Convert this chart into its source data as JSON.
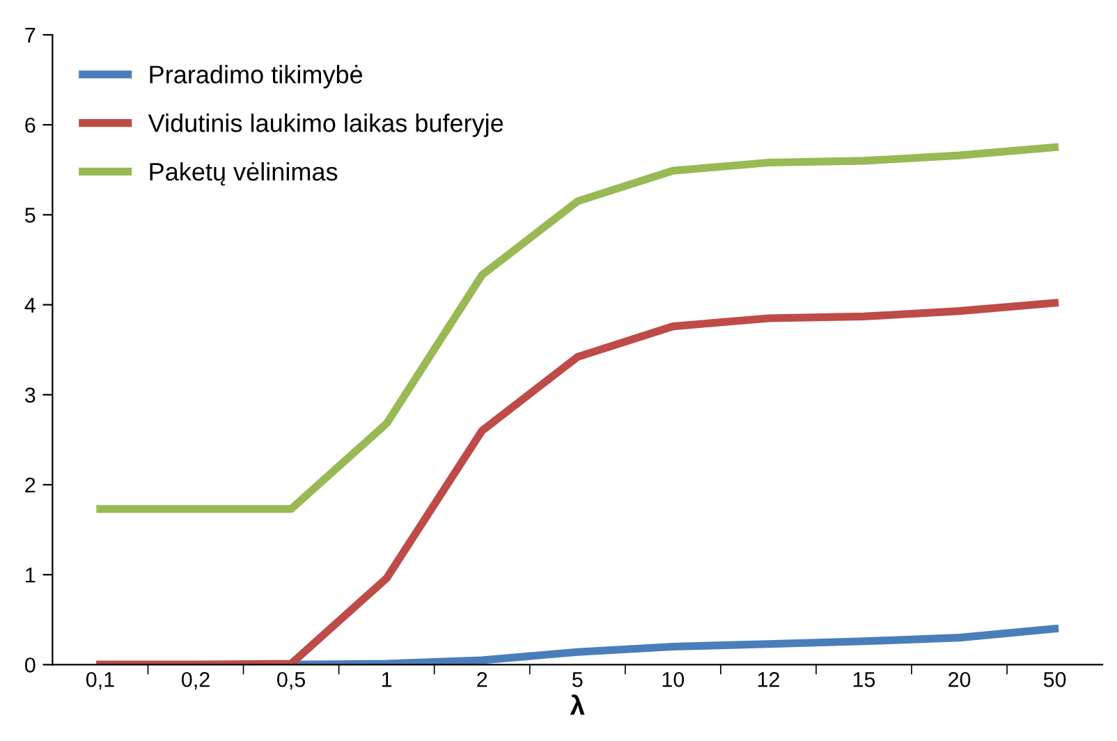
{
  "chart_data": {
    "type": "line",
    "xlabel": "λ",
    "categories": [
      "0,1",
      "0,2",
      "0,5",
      "1",
      "2",
      "5",
      "10",
      "12",
      "15",
      "20",
      "50"
    ],
    "ylim": [
      0,
      7
    ],
    "yticks": [
      0,
      1,
      2,
      3,
      4,
      5,
      6,
      7
    ],
    "grid": false,
    "legend": "top left",
    "marker": "none",
    "line_style": "solid",
    "series": [
      {
        "name": "Praradimo tikimybė",
        "color": "#4a7ebb",
        "values": [
          0,
          0,
          0,
          0.01,
          0.05,
          0.14,
          0.2,
          0.23,
          0.26,
          0.3,
          0.4
        ]
      },
      {
        "name": "Vidutinis laukimo laikas buferyje",
        "color": "#be4b48",
        "values": [
          0,
          0,
          0.01,
          0.96,
          2.6,
          3.42,
          3.76,
          3.85,
          3.87,
          3.93,
          4.02
        ]
      },
      {
        "name": "Paketų vėlinimas",
        "color": "#98b954",
        "values": [
          1.73,
          1.73,
          1.73,
          2.68,
          4.33,
          5.15,
          5.49,
          5.58,
          5.6,
          5.66,
          5.75
        ]
      }
    ]
  }
}
